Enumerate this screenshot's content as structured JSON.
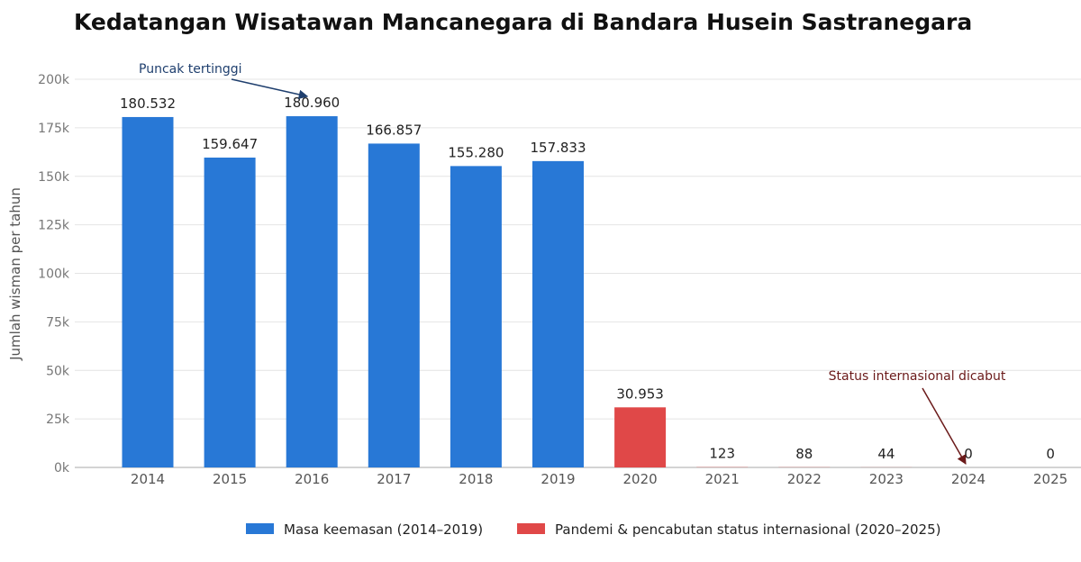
{
  "chart_data": {
    "type": "bar",
    "title": "Kedatangan Wisatawan Mancanegara di Bandara Husein Sastranegara",
    "xlabel": "",
    "ylabel": "Jumlah wisman per tahun",
    "ylim": [
      0,
      200000
    ],
    "y_ticks": [
      0,
      25000,
      50000,
      75000,
      100000,
      125000,
      150000,
      175000,
      200000
    ],
    "y_tick_labels": [
      "0k",
      "25k",
      "50k",
      "75k",
      "100k",
      "125k",
      "150k",
      "175k",
      "200k"
    ],
    "grid": true,
    "legend_position": "bottom",
    "categories": [
      "2014",
      "2015",
      "2016",
      "2017",
      "2018",
      "2019",
      "2020",
      "2021",
      "2022",
      "2023",
      "2024",
      "2025"
    ],
    "values": [
      180532,
      159647,
      180960,
      166857,
      155280,
      157833,
      30953,
      123,
      88,
      44,
      0,
      0
    ],
    "value_labels": [
      "180.532",
      "159.647",
      "180.960",
      "166.857",
      "155.280",
      "157.833",
      "30.953",
      "123",
      "88",
      "44",
      "0",
      "0"
    ],
    "groups": [
      0,
      0,
      0,
      0,
      0,
      0,
      1,
      1,
      1,
      1,
      1,
      1
    ],
    "legend": [
      {
        "label": "Masa keemasan (2014–2019)",
        "color": "#2878d6"
      },
      {
        "label": "Pandemi & pencabutan status internasional (2020–2025)",
        "color": "#e04848"
      }
    ],
    "annotations": [
      {
        "text": "Puncak tertinggi",
        "target_category": "2016",
        "color": "#1f3f6e"
      },
      {
        "text": "Status internasional dicabut",
        "target_category": "2024",
        "color": "#6b1a1a"
      }
    ]
  }
}
